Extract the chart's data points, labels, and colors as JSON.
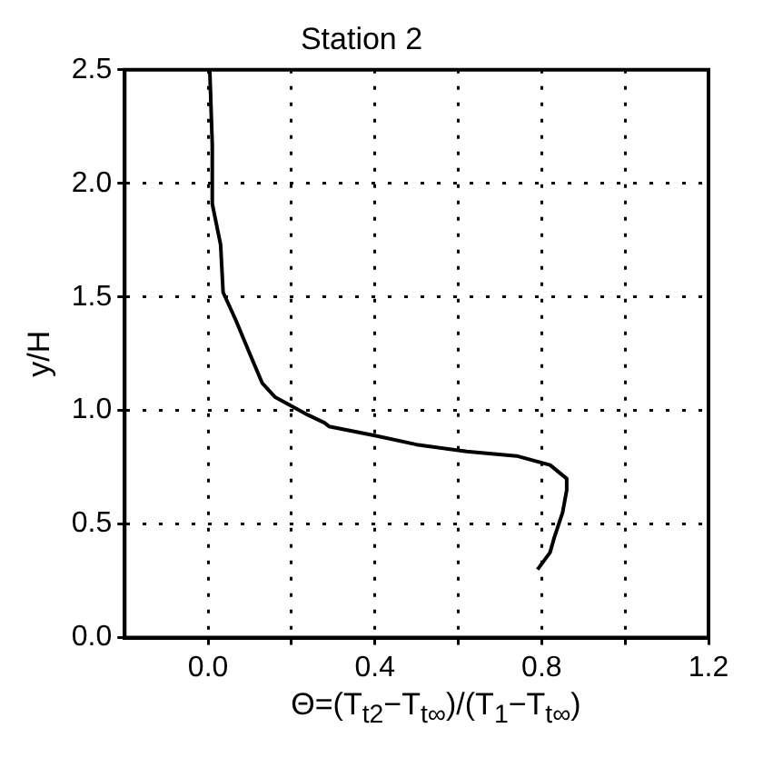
{
  "chart_data": {
    "type": "line",
    "title": "Station 2",
    "xlabel": "Θ=(T$_{t2}$−T$_{t∞}$)/(T$_{1}$−T$_{t∞}$)",
    "ylabel": "y/H",
    "series": [
      {
        "color": "#000000",
        "x": [
          0.004,
          0.01,
          0.01,
          0.03,
          0.036,
          0.066,
          0.1,
          0.13,
          0.16,
          0.2,
          0.24,
          0.28,
          0.29,
          0.4,
          0.5,
          0.62,
          0.74,
          0.82,
          0.86,
          0.86,
          0.85,
          0.83,
          0.82,
          0.79
        ],
        "values": [
          2.5,
          2.17,
          1.91,
          1.73,
          1.52,
          1.4,
          1.25,
          1.12,
          1.06,
          1.02,
          0.98,
          0.945,
          0.93,
          0.89,
          0.85,
          0.82,
          0.8,
          0.76,
          0.7,
          0.65,
          0.55,
          0.44,
          0.375,
          0.3
        ]
      }
    ],
    "xlim": [
      -0.2,
      1.2
    ],
    "xticks": [
      {
        "value": 0,
        "label": "0.0"
      },
      {
        "value": 0.2,
        "label": null
      },
      {
        "value": 0.4,
        "label": "0.4"
      },
      {
        "value": 0.6,
        "label": null
      },
      {
        "value": 0.8,
        "label": "0.8"
      },
      {
        "value": 1.0,
        "label": null
      },
      {
        "value": 1.2,
        "label": "1.2"
      }
    ],
    "ylim": [
      0,
      2.5
    ],
    "yticks": [
      {
        "value": 0,
        "label": "0.0"
      },
      {
        "value": 0.5,
        "label": "0.5"
      },
      {
        "value": 1.0,
        "label": "1.0"
      },
      {
        "value": 1.5,
        "label": "1.5"
      },
      {
        "value": 2.0,
        "label": "2.0"
      },
      {
        "value": 2.5,
        "label": "2.5"
      }
    ],
    "grid": true,
    "marker": "none",
    "line_style": "solid"
  }
}
